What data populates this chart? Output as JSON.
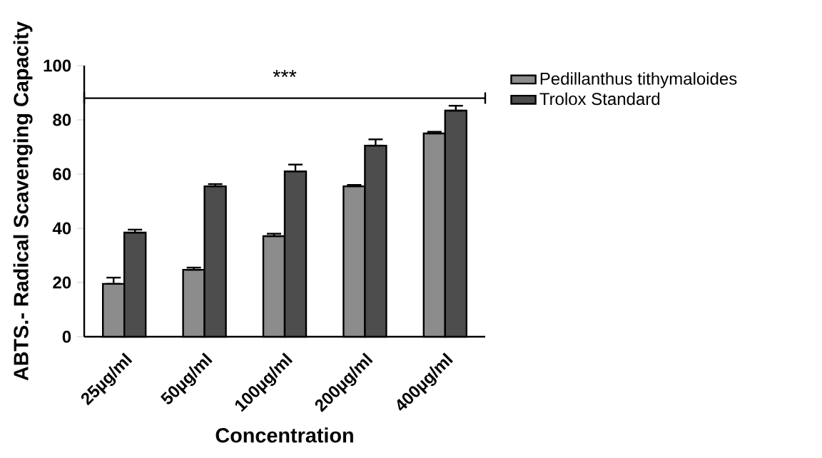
{
  "chart_data": {
    "type": "bar",
    "xlabel": "Concentration",
    "ylabel": "ABTS.- Radical Scavenging Capacity",
    "categories": [
      "25µg/ml",
      "50µg/ml",
      "100µg/ml",
      "200µg/ml",
      "400µg/ml"
    ],
    "series": [
      {
        "name": "Pedillanthus tithymaloides",
        "color": "#8c8c8c",
        "values": [
          19.5,
          24.7,
          37.1,
          55.5,
          75
        ],
        "errors": [
          [
            19.5,
            21.8
          ],
          [
            24.7,
            25.5
          ],
          [
            37.1,
            38
          ],
          [
            55.5,
            56
          ],
          [
            75,
            75.6
          ]
        ]
      },
      {
        "name": "Trolox Standard",
        "color": "#4d4d4d",
        "values": [
          38.4,
          55.5,
          61,
          70.5,
          83.4
        ],
        "errors": [
          [
            38.4,
            39.5
          ],
          [
            55.5,
            56.3
          ],
          [
            61,
            63.5
          ],
          [
            70.5,
            72.8
          ],
          [
            83.4,
            85.2
          ]
        ]
      }
    ],
    "ylim": [
      0,
      100
    ],
    "yticks": [
      0,
      20,
      40,
      60,
      80,
      100
    ],
    "grid": false,
    "legend": "right",
    "ref_lines": [
      {
        "axis": "y",
        "value": 88,
        "label": "***",
        "color": "#000000"
      }
    ]
  }
}
